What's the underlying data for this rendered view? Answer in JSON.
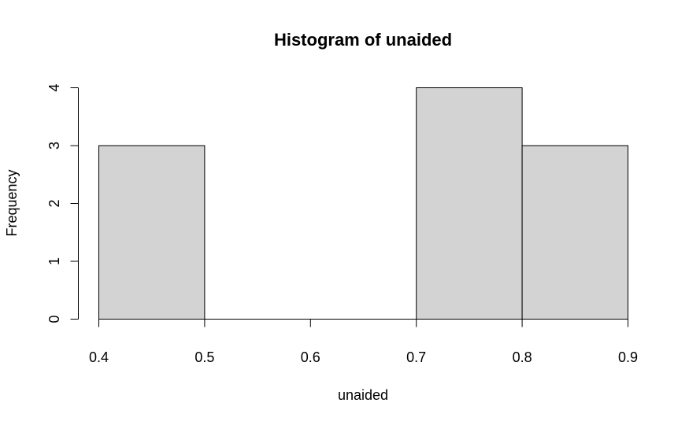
{
  "chart_data": {
    "type": "bar",
    "title": "Histogram of unaided",
    "xlabel": "unaided",
    "ylabel": "Frequency",
    "bins": [
      {
        "from": 0.4,
        "to": 0.5,
        "count": 3
      },
      {
        "from": 0.5,
        "to": 0.6,
        "count": 0
      },
      {
        "from": 0.6,
        "to": 0.7,
        "count": 0
      },
      {
        "from": 0.7,
        "to": 0.8,
        "count": 4
      },
      {
        "from": 0.8,
        "to": 0.9,
        "count": 3
      }
    ],
    "xlim": [
      0.4,
      0.9
    ],
    "ylim": [
      0,
      4
    ],
    "x_ticks": [
      "0.4",
      "0.5",
      "0.6",
      "0.7",
      "0.8",
      "0.9"
    ],
    "y_ticks": [
      "0",
      "1",
      "2",
      "3",
      "4"
    ],
    "bar_color": "#d3d3d3",
    "grid": false
  }
}
